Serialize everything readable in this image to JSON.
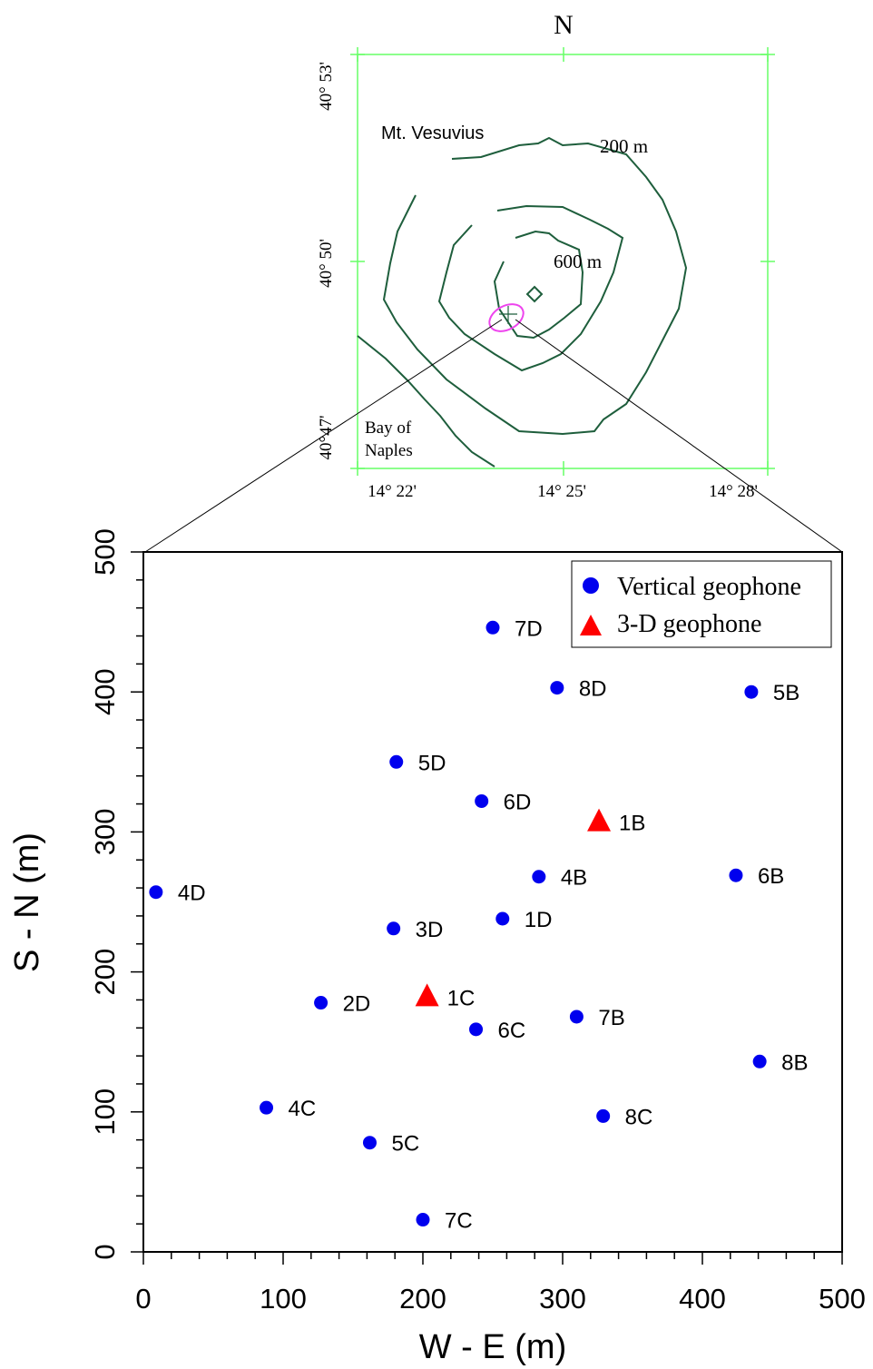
{
  "map": {
    "north_label": "N",
    "volcano_label": "Mt. Vesuvius",
    "bay_label_line1": "Bay of",
    "bay_label_line2": "Naples",
    "contour_labels": [
      "200 m",
      "600 m"
    ],
    "lat_ticks": [
      "40° 53'",
      "40° 50'",
      "40°47'"
    ],
    "lon_ticks": [
      "14° 22'",
      "14° 25'",
      "14° 28'"
    ],
    "colors": {
      "frame": "#66ff66",
      "contour": "#1e5e3c",
      "array_marker": "#ee44ee",
      "leader": "#000000"
    }
  },
  "chart_data": {
    "type": "scatter",
    "xlabel": "W - E  (m)",
    "ylabel": "S - N  (m)",
    "xlim": [
      0,
      500
    ],
    "ylim": [
      0,
      500
    ],
    "xticks": [
      0,
      100,
      200,
      300,
      400,
      500
    ],
    "yticks": [
      0,
      100,
      200,
      300,
      400,
      500
    ],
    "grid": false,
    "legend_position": "top-right",
    "series": [
      {
        "name": "Vertical geophone",
        "marker": "circle",
        "color": "#0000ee",
        "points": [
          {
            "label": "7D",
            "x": 250,
            "y": 446
          },
          {
            "label": "8D",
            "x": 296,
            "y": 403
          },
          {
            "label": "5B",
            "x": 435,
            "y": 400
          },
          {
            "label": "5D",
            "x": 181,
            "y": 350
          },
          {
            "label": "6D",
            "x": 242,
            "y": 322
          },
          {
            "label": "4B",
            "x": 283,
            "y": 268
          },
          {
            "label": "6B",
            "x": 424,
            "y": 269
          },
          {
            "label": "4D",
            "x": 9,
            "y": 257
          },
          {
            "label": "1D",
            "x": 257,
            "y": 238
          },
          {
            "label": "3D",
            "x": 179,
            "y": 231
          },
          {
            "label": "2D",
            "x": 127,
            "y": 178
          },
          {
            "label": "7B",
            "x": 310,
            "y": 168
          },
          {
            "label": "6C",
            "x": 238,
            "y": 159
          },
          {
            "label": "8B",
            "x": 441,
            "y": 136
          },
          {
            "label": "4C",
            "x": 88,
            "y": 103
          },
          {
            "label": "8C",
            "x": 329,
            "y": 97
          },
          {
            "label": "5C",
            "x": 162,
            "y": 78
          },
          {
            "label": "7C",
            "x": 200,
            "y": 23
          }
        ]
      },
      {
        "name": "3-D geophone",
        "marker": "triangle",
        "color": "#ff0000",
        "points": [
          {
            "label": "1B",
            "x": 326,
            "y": 307
          },
          {
            "label": "1C",
            "x": 203,
            "y": 182
          }
        ]
      }
    ]
  }
}
